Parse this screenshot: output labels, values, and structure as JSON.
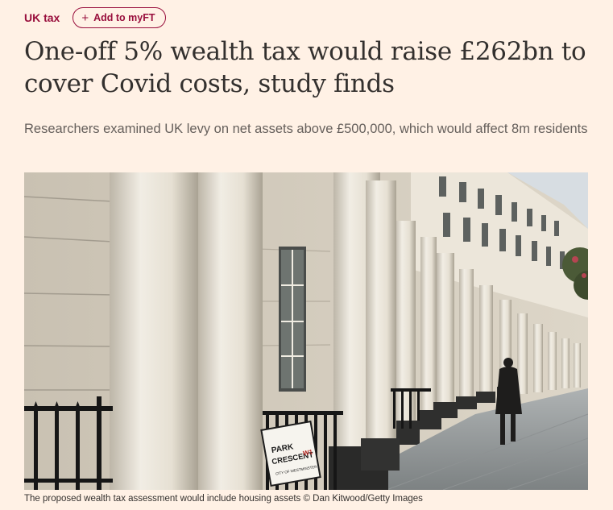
{
  "topline": {
    "section_label": "UK tax",
    "myft_label": "Add to myFT"
  },
  "article": {
    "headline": "One-off 5% wealth tax would raise £262bn to cover Covid costs, study finds",
    "standfirst": "Researchers examined UK levy on net assets above £500,000, which would affect 8m residents",
    "image": {
      "sign_line1": "PARK",
      "sign_line2": "CRESCENT",
      "sign_code": "W1",
      "sign_sub": "CITY OF WESTMINSTER"
    },
    "caption": "The proposed wealth tax assessment would include housing assets © Dan Kitwood/Getty Images"
  },
  "colors": {
    "background": "#fff1e5",
    "accent": "#990f3d",
    "text": "#33302e"
  },
  "icons": {
    "myft": "plus-icon"
  }
}
